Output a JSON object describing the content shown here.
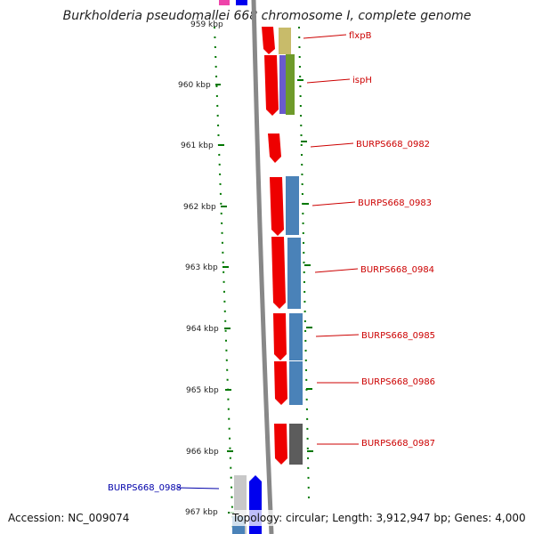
{
  "title": "Burkholderia pseudomallei 668 chromosome I, complete genome",
  "top_tick_label": "959 kbp",
  "ticks": [
    {
      "kbp": 960,
      "label": "960 kbp"
    },
    {
      "kbp": 961,
      "label": "961 kbp"
    },
    {
      "kbp": 962,
      "label": "962 kbp"
    },
    {
      "kbp": 963,
      "label": "963 kbp"
    },
    {
      "kbp": 964,
      "label": "964 kbp"
    },
    {
      "kbp": 965,
      "label": "965 kbp"
    },
    {
      "kbp": 966,
      "label": "966 kbp"
    },
    {
      "kbp": 967,
      "label": "967 kbp"
    }
  ],
  "gene_labels": [
    {
      "text": "flxpB",
      "strand": "forward"
    },
    {
      "text": "ispH",
      "strand": "forward"
    },
    {
      "text": "BURPS668_0982",
      "strand": "forward"
    },
    {
      "text": "BURPS668_0983",
      "strand": "forward"
    },
    {
      "text": "BURPS668_0984",
      "strand": "forward"
    },
    {
      "text": "BURPS668_0985",
      "strand": "forward"
    },
    {
      "text": "BURPS668_0986",
      "strand": "forward"
    },
    {
      "text": "BURPS668_0987",
      "strand": "forward"
    },
    {
      "text": "BURPS668_0988",
      "strand": "reverse"
    }
  ],
  "colors": {
    "forward_gene": "#ee0000",
    "reverse_gene": "#0000ee",
    "forward_label": "#cc0000",
    "reverse_label": "#0000aa",
    "tick": "#007700",
    "backbone": "#888888",
    "feature_steelblue": "#4a82b8",
    "feature_olive": "#6e9a2a",
    "feature_khaki": "#c8bb6a",
    "feature_purple": "#6a5acd",
    "feature_darkgray": "#5c5c5c",
    "feature_lightgray": "#c8c8c8"
  },
  "footer": {
    "accession": "Accession: NC_009074",
    "summary": "Topology: circular; Length: 3,912,947 bp; Genes: 4,000"
  }
}
